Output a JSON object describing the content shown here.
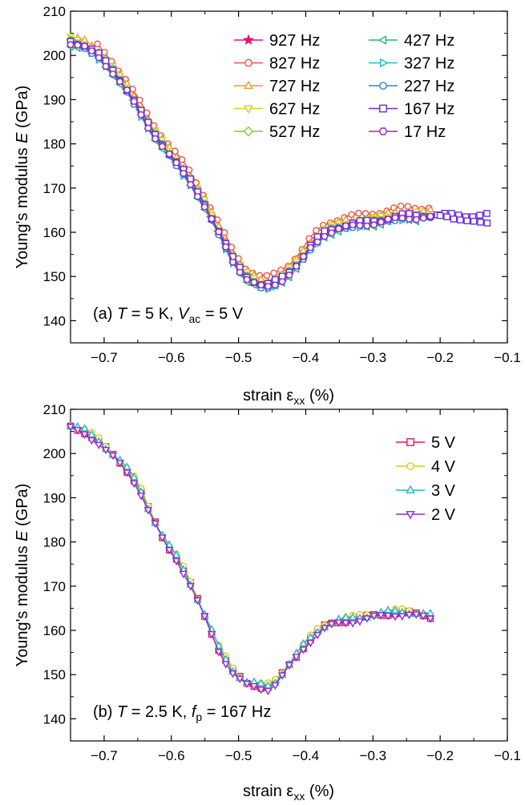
{
  "chart_data": [
    {
      "type": "line",
      "panel": "a",
      "annotation": {
        "prefix": "(a) ",
        "T_sym": "T",
        "T_val": " = 5 K, ",
        "V_sym": "V",
        "V_sub": "ac",
        "V_val": " = 5 V"
      },
      "xlabel_main": "strain ε",
      "xlabel_sub": "xx",
      "xlabel_unit": " (%)",
      "ylabel_main": "Young's modulus ",
      "ylabel_sym": "E",
      "ylabel_unit": " (GPa)",
      "xlim": [
        -0.75,
        -0.1
      ],
      "ylim": [
        135,
        210
      ],
      "xticks": [
        -0.7,
        -0.6,
        -0.5,
        -0.4,
        -0.3,
        -0.2,
        -0.1
      ],
      "xtick_labels": [
        "−0.7",
        "−0.6",
        "−0.5",
        "−0.4",
        "−0.3",
        "−0.2",
        "−0.1"
      ],
      "yticks": [
        140,
        150,
        160,
        170,
        180,
        190,
        200,
        210
      ],
      "ytick_labels": [
        "140",
        "150",
        "160",
        "170",
        "180",
        "190",
        "200",
        "210"
      ],
      "legend_position": "top-right",
      "base_x": [
        -0.75,
        -0.73,
        -0.71,
        -0.69,
        -0.67,
        -0.65,
        -0.63,
        -0.61,
        -0.59,
        -0.57,
        -0.55,
        -0.53,
        -0.51,
        -0.49,
        -0.47,
        -0.46,
        -0.45,
        -0.44,
        -0.43,
        -0.42,
        -0.41,
        -0.4,
        -0.39,
        -0.38,
        -0.37,
        -0.35,
        -0.33,
        -0.31,
        -0.29,
        -0.27,
        -0.25,
        -0.23,
        -0.21
      ],
      "base_y": [
        203,
        202,
        200,
        197,
        193,
        188,
        183,
        179,
        175,
        171,
        166,
        160,
        154,
        150,
        148,
        147.5,
        148,
        149,
        150,
        151.5,
        153,
        155,
        157,
        158.5,
        160,
        161,
        161.5,
        162,
        162.5,
        163,
        163.5,
        163.5,
        163.5
      ],
      "series": [
        {
          "name": "927 Hz",
          "color": "#e8106a",
          "marker": "star",
          "offset": 0.3,
          "x_start": -0.73,
          "x_end": -0.23
        },
        {
          "name": "827 Hz",
          "color": "#f0504a",
          "marker": "circle",
          "offset": 2.2,
          "x_start": -0.71,
          "x_end": -0.21
        },
        {
          "name": "727 Hz",
          "color": "#e0a020",
          "marker": "triangle-up",
          "offset": 1.2,
          "x_start": -0.75,
          "x_end": -0.21
        },
        {
          "name": "627 Hz",
          "color": "#dccc20",
          "marker": "triangle-down",
          "offset": 0.8,
          "x_start": -0.75,
          "x_end": -0.23
        },
        {
          "name": "527 Hz",
          "color": "#88cc30",
          "marker": "diamond",
          "offset": 0.6,
          "x_start": -0.75,
          "x_end": -0.27
        },
        {
          "name": "427 Hz",
          "color": "#20b878",
          "marker": "triangle-left",
          "offset": -0.6,
          "x_start": -0.75,
          "x_end": -0.23
        },
        {
          "name": "327 Hz",
          "color": "#20b8c8",
          "marker": "triangle-right",
          "offset": -0.3,
          "x_start": -0.75,
          "x_end": -0.23
        },
        {
          "name": "227 Hz",
          "color": "#2088e0",
          "marker": "circle",
          "offset": 0.0,
          "x_start": -0.75,
          "x_end": -0.21
        },
        {
          "name": "167 Hz",
          "color": "#6a30d8",
          "marker": "square",
          "offset": 0.4,
          "x_start": -0.75,
          "x_end": -0.13,
          "tail_x": [
            -0.2,
            -0.19,
            -0.18,
            -0.17,
            -0.16,
            -0.15,
            -0.14,
            -0.13
          ],
          "tail_y": [
            163.8,
            163.5,
            163,
            162.8,
            162.6,
            162.5,
            162.3,
            162.1
          ]
        },
        {
          "name": "17 Hz",
          "color": "#8e2cc8",
          "marker": "hexagon",
          "offset": -0.2,
          "x_start": -0.75,
          "x_end": -0.21
        }
      ]
    },
    {
      "type": "line",
      "panel": "b",
      "annotation": {
        "prefix": "(b) ",
        "T_sym": "T",
        "T_val": " = 2.5 K, ",
        "f_sym": "f",
        "f_sub": "p",
        "f_val": " = 167 Hz"
      },
      "xlabel_main": "strain ε",
      "xlabel_sub": "xx",
      "xlabel_unit": " (%)",
      "ylabel_main": "Young's modulus ",
      "ylabel_sym": "E",
      "ylabel_unit": " (GPa)",
      "xlim": [
        -0.75,
        -0.1
      ],
      "ylim": [
        135,
        210
      ],
      "xticks": [
        -0.7,
        -0.6,
        -0.5,
        -0.4,
        -0.3,
        -0.2,
        -0.1
      ],
      "xtick_labels": [
        "−0.7",
        "−0.6",
        "−0.5",
        "−0.4",
        "−0.3",
        "−0.2",
        "−0.1"
      ],
      "yticks": [
        140,
        150,
        160,
        170,
        180,
        190,
        200,
        210
      ],
      "ytick_labels": [
        "140",
        "150",
        "160",
        "170",
        "180",
        "190",
        "200",
        "210"
      ],
      "legend_position": "top-right",
      "base_x": [
        -0.75,
        -0.73,
        -0.71,
        -0.69,
        -0.67,
        -0.65,
        -0.63,
        -0.61,
        -0.59,
        -0.57,
        -0.55,
        -0.53,
        -0.51,
        -0.49,
        -0.47,
        -0.46,
        -0.45,
        -0.44,
        -0.43,
        -0.42,
        -0.41,
        -0.4,
        -0.39,
        -0.38,
        -0.37,
        -0.35,
        -0.33,
        -0.31,
        -0.29,
        -0.27,
        -0.25,
        -0.23,
        -0.21
      ],
      "base_y": [
        206,
        205,
        203,
        200,
        197,
        193,
        186,
        180,
        176,
        170,
        163,
        156,
        151,
        148,
        147.5,
        147,
        147.5,
        149,
        151,
        153,
        155,
        157,
        158.5,
        160,
        161,
        162,
        162.5,
        163,
        163.5,
        164,
        164,
        163.5,
        163
      ],
      "series": [
        {
          "name": "5 V",
          "color": "#e8106a",
          "marker": "square",
          "offset": 0.0,
          "x_start": -0.75,
          "x_end": -0.21
        },
        {
          "name": "4 V",
          "color": "#d8c820",
          "marker": "circle",
          "offset": 0.5,
          "x_start": -0.75,
          "x_end": -0.21
        },
        {
          "name": "3 V",
          "color": "#20b8c8",
          "marker": "triangle-up",
          "offset": 0.3,
          "x_start": -0.75,
          "x_end": -0.21
        },
        {
          "name": "2 V",
          "color": "#8e2cc8",
          "marker": "triangle-down",
          "offset": -0.4,
          "x_start": -0.75,
          "x_end": -0.21
        }
      ]
    }
  ]
}
